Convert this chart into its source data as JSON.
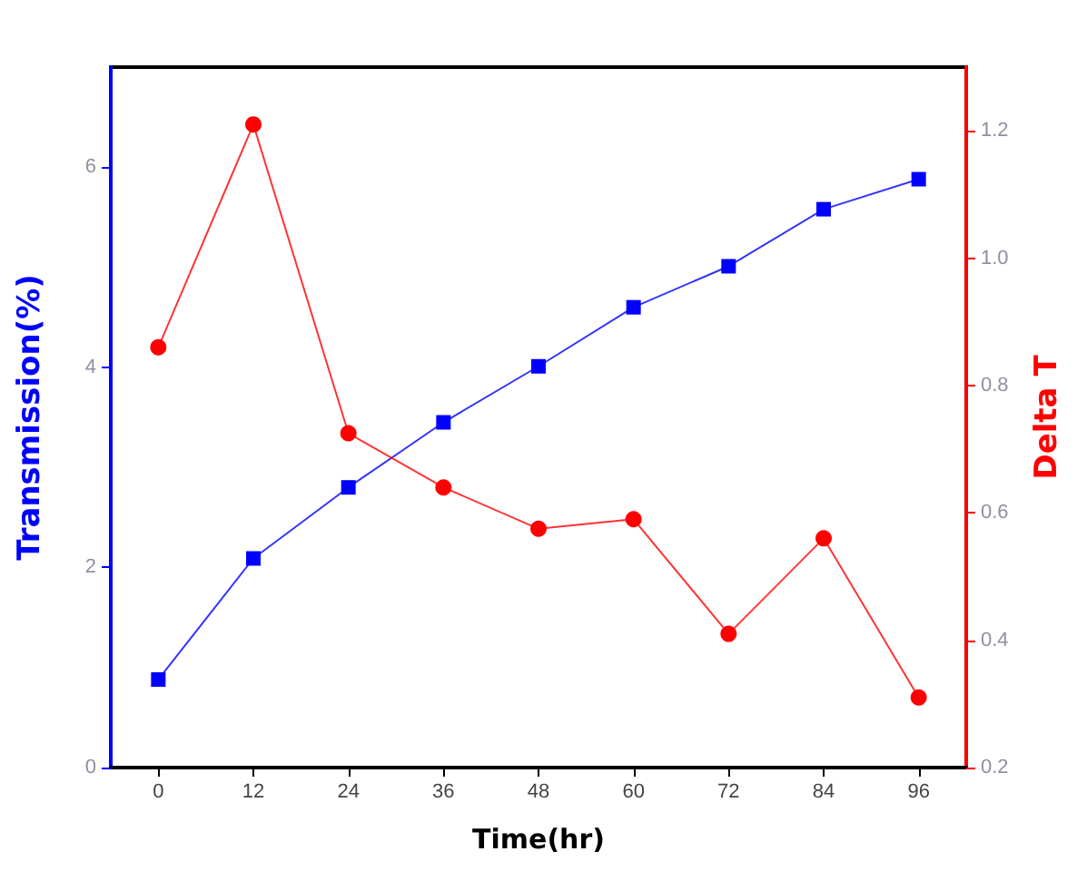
{
  "chart_data": {
    "type": "line",
    "xlabel": "Time(hr)",
    "ylabel": "Transmission(%)",
    "y2label": "Delta T",
    "x": [
      0,
      12,
      24,
      36,
      48,
      60,
      72,
      84,
      96
    ],
    "xlim": [
      -6,
      102
    ],
    "xticks": [
      0,
      12,
      24,
      36,
      48,
      60,
      72,
      84,
      96
    ],
    "ylim": [
      0,
      7
    ],
    "yticks": [
      0,
      2,
      4,
      6
    ],
    "y2lim": [
      0.2,
      1.3
    ],
    "y2ticks": [
      0.2,
      0.4,
      0.6,
      0.8,
      {
        "value": 1,
        "label": "1.0"
      },
      1.2
    ],
    "grid": false,
    "line_style": "solid",
    "series": [
      {
        "color": "#0000ff",
        "marker": "square",
        "values": [
          0.88,
          2.09,
          2.8,
          3.45,
          4.01,
          4.6,
          5.01,
          5.58,
          5.88
        ]
      },
      {
        "color": "#ff0000",
        "marker": "circle",
        "axis": "y2",
        "values": [
          0.86,
          1.21,
          0.725,
          0.64,
          0.575,
          0.59,
          0.41,
          0.56,
          0.31
        ]
      }
    ]
  }
}
